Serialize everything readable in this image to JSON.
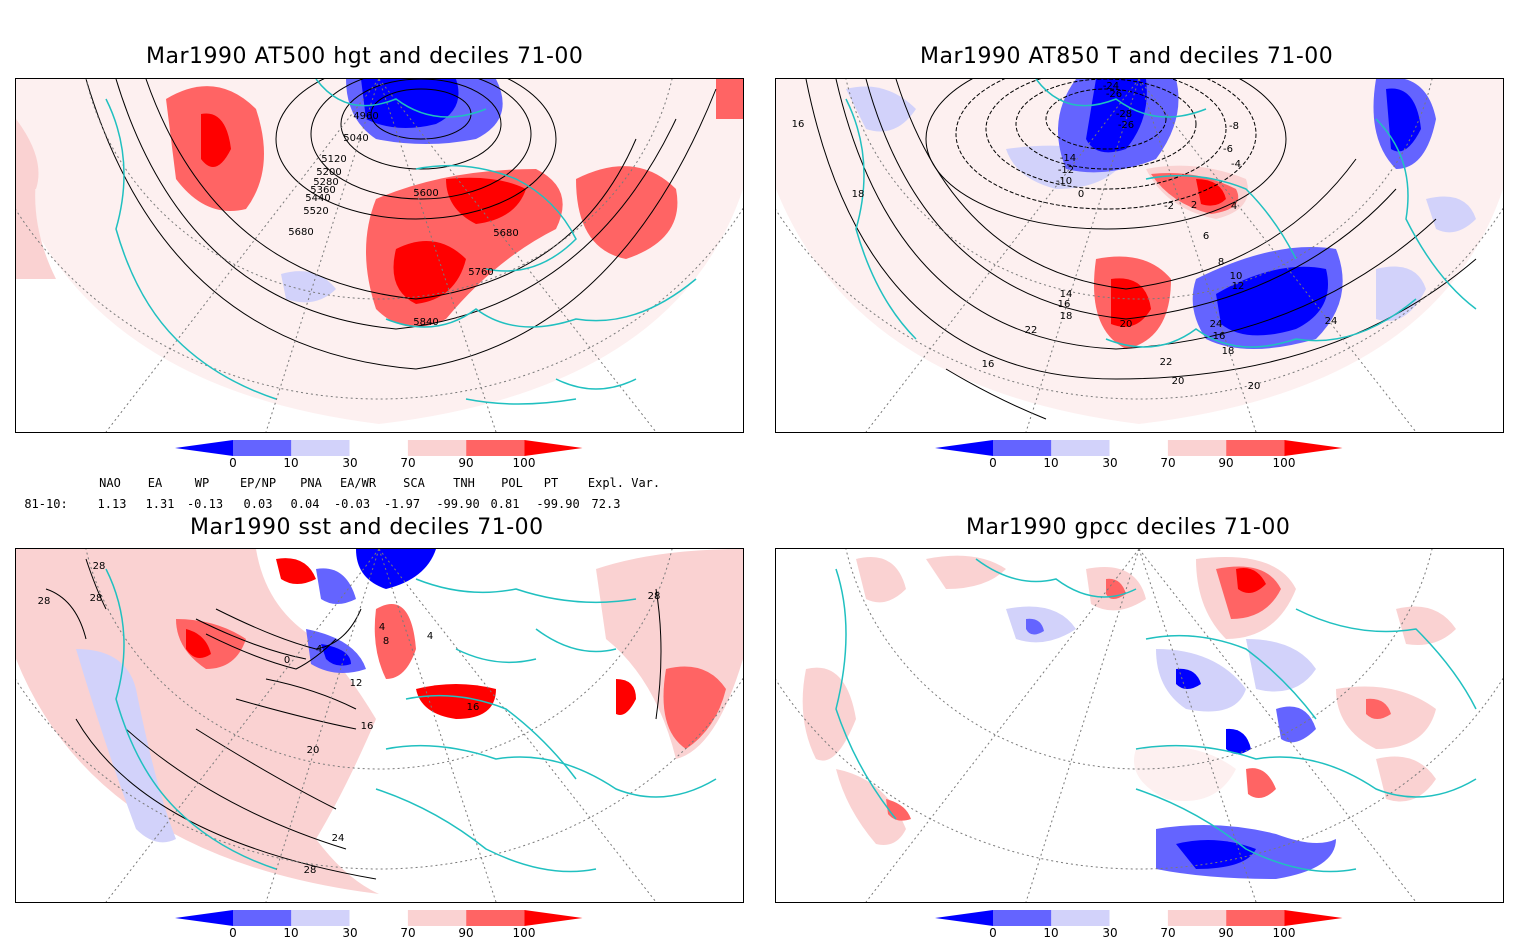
{
  "panels": [
    {
      "title": "Mar1990 AT500 hgt and deciles 71-00"
    },
    {
      "title": "Mar1990 AT850 T and deciles 71-00"
    },
    {
      "title": "Mar1990 sst and deciles 71-00"
    },
    {
      "title": "Mar1990 gpcc deciles 71-00"
    }
  ],
  "colorbar": {
    "ticks": [
      "0",
      "10",
      "30",
      "70",
      "90",
      "100"
    ],
    "colors": [
      "#0000ff",
      "#6464ff",
      "#d2d2fa",
      "#ffffff",
      "#fad2d2",
      "#ff6464",
      "#ff0000"
    ]
  },
  "contour_labels": {
    "hgt": [
      "4960",
      "5040",
      "5120",
      "5200",
      "5280",
      "5360",
      "5440",
      "5520",
      "5600",
      "5680",
      "5680",
      "5760",
      "5840"
    ],
    "t850": [
      "-24",
      "-26",
      "-28",
      "-26",
      "-14",
      "-12",
      "-10",
      "-8",
      "-6",
      "-4",
      "-2",
      "0",
      "2",
      "4",
      "6",
      "8",
      "10",
      "12",
      "14",
      "16",
      "18",
      "20",
      "22",
      "24",
      "16",
      "18",
      "20",
      "22",
      "20",
      "24",
      "16",
      "16",
      "18"
    ],
    "sst": [
      "28",
      "28",
      "28",
      "0",
      "4",
      "4",
      "4",
      "8",
      "12",
      "16",
      "20",
      "24",
      "28",
      "16",
      "28"
    ]
  },
  "indices": {
    "headers": [
      "NAO",
      "EA",
      "WP",
      "EP/NP",
      "PNA",
      "EA/WR",
      "SCA",
      "TNH",
      "POL",
      "PT",
      "Expl. Var."
    ],
    "row_label": "81-10:",
    "values": [
      "1.13",
      "1.31",
      "-0.13",
      "0.03",
      "0.04",
      "-0.03",
      "-1.97",
      "-99.90",
      "0.81",
      "-99.90",
      "72.3"
    ]
  }
}
